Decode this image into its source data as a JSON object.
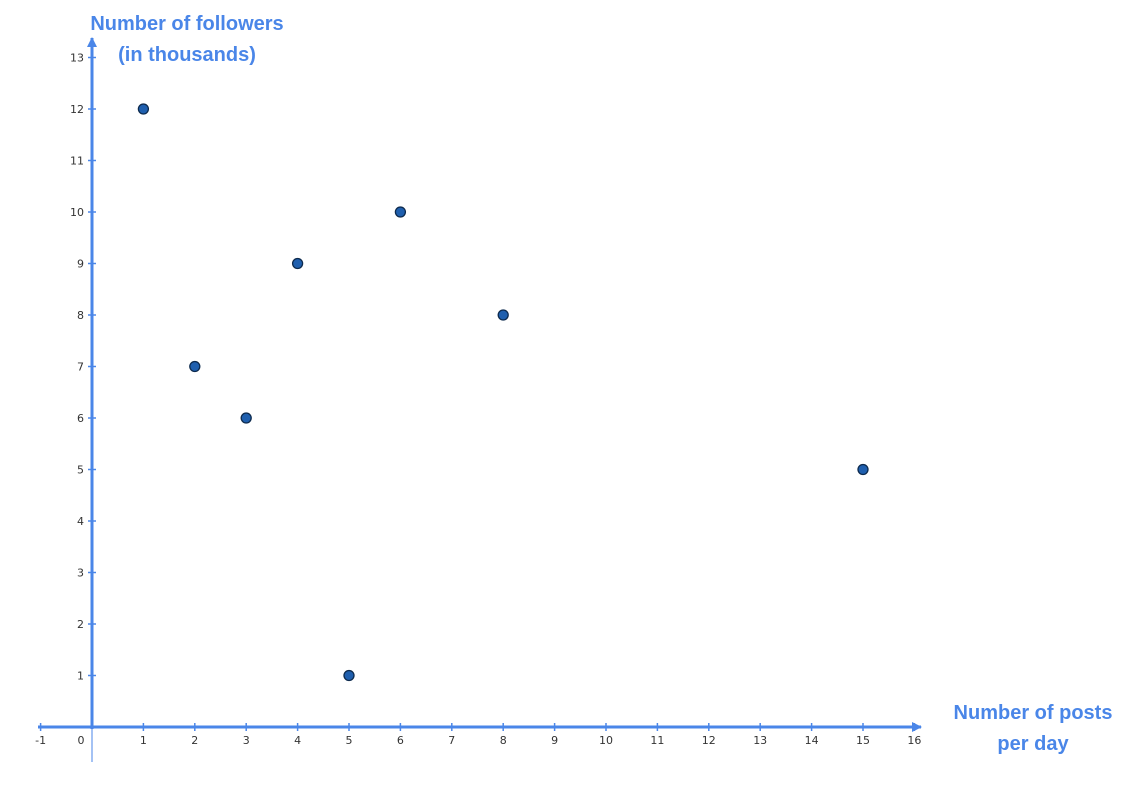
{
  "chart_data": {
    "type": "scatter",
    "title": "",
    "xlabel_lines": [
      "Number of posts",
      "per day"
    ],
    "ylabel_lines": [
      "Number of followers",
      "(in thousands)"
    ],
    "xlim": [
      -1,
      16
    ],
    "ylim": [
      0,
      13
    ],
    "x_ticks": [
      -1,
      0,
      1,
      2,
      3,
      4,
      5,
      6,
      7,
      8,
      9,
      10,
      11,
      12,
      13,
      14,
      15,
      16
    ],
    "y_ticks": [
      1,
      2,
      3,
      4,
      5,
      6,
      7,
      8,
      9,
      10,
      11,
      12,
      13
    ],
    "grid": false,
    "points": [
      {
        "x": 1,
        "y": 12
      },
      {
        "x": 2,
        "y": 7
      },
      {
        "x": 3,
        "y": 6
      },
      {
        "x": 4,
        "y": 9
      },
      {
        "x": 5,
        "y": 1
      },
      {
        "x": 6,
        "y": 10
      },
      {
        "x": 8,
        "y": 8
      },
      {
        "x": 15,
        "y": 5
      }
    ],
    "colors": {
      "axis": "#4a86e8",
      "axis_title": "#4a86e8",
      "point_fill": "#1f5fae",
      "point_stroke": "#0d2a4d"
    }
  }
}
